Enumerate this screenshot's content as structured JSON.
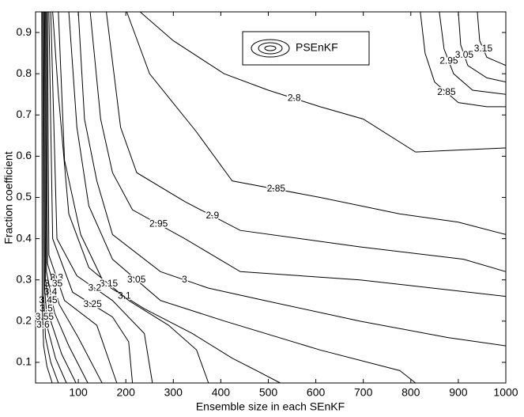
{
  "chart_data": {
    "type": "contour",
    "xlabel": "Ensemble size in each SEnKF",
    "ylabel": "Fraction coefficient",
    "legend": "PSEnKF",
    "legend_position": "upper center",
    "color": "#000000",
    "xlim": [
      10,
      1000
    ],
    "ylim": [
      0.05,
      0.95
    ],
    "xticks": [
      100,
      200,
      300,
      400,
      500,
      600,
      700,
      800,
      900,
      1000
    ],
    "yticks": [
      0.1,
      0.2,
      0.3,
      0.4,
      0.5,
      0.6,
      0.7,
      0.8,
      0.9
    ],
    "contours": [
      {
        "level": 2.8,
        "x": [
          230,
          300,
          407,
          500,
          609,
          700,
          810,
          900,
          1000
        ],
        "y": [
          0.95,
          0.88,
          0.8,
          0.76,
          0.72,
          0.69,
          0.61,
          0.615,
          0.62
        ]
      },
      {
        "level": 2.85,
        "x": [
          202,
          250,
          348,
          424,
          609,
          777,
          900,
          1000
        ],
        "y": [
          0.95,
          0.8,
          0.66,
          0.54,
          0.5,
          0.46,
          0.44,
          0.41
        ]
      },
      {
        "level": 2.9,
        "x": [
          159,
          189,
          223,
          324,
          441,
          693,
          911,
          1000
        ],
        "y": [
          0.95,
          0.67,
          0.56,
          0.49,
          0.42,
          0.38,
          0.35,
          0.32
        ]
      },
      {
        "level": 2.95,
        "x": [
          125,
          147,
          172,
          214,
          324,
          441,
          693,
          1000
        ],
        "y": [
          0.95,
          0.69,
          0.56,
          0.47,
          0.4,
          0.32,
          0.3,
          0.26
        ]
      },
      {
        "level": 3,
        "x": [
          100,
          113,
          139,
          172,
          273,
          374,
          492,
          693,
          878,
          1000
        ],
        "y": [
          0.95,
          0.69,
          0.54,
          0.41,
          0.32,
          0.28,
          0.25,
          0.2,
          0.16,
          0.14
        ]
      },
      {
        "level": 3.05,
        "x": [
          80,
          97,
          122,
          172,
          273,
          408,
          609,
          777,
          810
        ],
        "y": [
          0.95,
          0.67,
          0.48,
          0.35,
          0.25,
          0.2,
          0.13,
          0.08,
          0.05
        ]
      },
      {
        "level": 3.1,
        "x": [
          58,
          71,
          105,
          155,
          239,
          340,
          424,
          475,
          525
        ],
        "y": [
          0.95,
          0.59,
          0.41,
          0.29,
          0.23,
          0.17,
          0.11,
          0.08,
          0.05
        ]
      },
      {
        "level": 3.15,
        "x": [
          46,
          58,
          80,
          122,
          206,
          290,
          349,
          374
        ],
        "y": [
          0.95,
          0.75,
          0.46,
          0.33,
          0.25,
          0.19,
          0.13,
          0.05
        ]
      },
      {
        "level": 3.2,
        "x": [
          42,
          55,
          97,
          172,
          239,
          256
        ],
        "y": [
          0.95,
          0.4,
          0.31,
          0.25,
          0.17,
          0.05
        ]
      },
      {
        "level": 3.25,
        "x": [
          38,
          46,
          88,
          172,
          206,
          214
        ],
        "y": [
          0.95,
          0.4,
          0.27,
          0.21,
          0.15,
          0.05
        ]
      },
      {
        "level": 3.3,
        "x": [
          35,
          38,
          71,
          139,
          181
        ],
        "y": [
          0.95,
          0.36,
          0.25,
          0.19,
          0.05
        ]
      },
      {
        "level": 3.35,
        "x": [
          33,
          35,
          60,
          100,
          150
        ],
        "y": [
          0.95,
          0.34,
          0.24,
          0.16,
          0.05
        ]
      },
      {
        "level": 3.4,
        "x": [
          31,
          33,
          50,
          80,
          120
        ],
        "y": [
          0.95,
          0.32,
          0.22,
          0.14,
          0.05
        ]
      },
      {
        "level": 3.45,
        "x": [
          29,
          31,
          42,
          65,
          95
        ],
        "y": [
          0.95,
          0.3,
          0.2,
          0.12,
          0.05
        ]
      },
      {
        "level": 3.5,
        "x": [
          27,
          29,
          36,
          52,
          75
        ],
        "y": [
          0.95,
          0.28,
          0.18,
          0.11,
          0.05
        ]
      },
      {
        "level": 3.55,
        "x": [
          25,
          27,
          31,
          42,
          58
        ],
        "y": [
          0.95,
          0.26,
          0.16,
          0.1,
          0.05
        ]
      },
      {
        "level": 3.6,
        "x": [
          23,
          24,
          27,
          34,
          45
        ],
        "y": [
          0.95,
          0.24,
          0.14,
          0.09,
          0.05
        ]
      },
      {
        "level": 2.85,
        "x": [
          820,
          830,
          850,
          900,
          960,
          1000
        ],
        "y": [
          0.95,
          0.85,
          0.78,
          0.73,
          0.72,
          0.72
        ]
      },
      {
        "level": 2.95,
        "x": [
          860,
          870,
          890,
          930,
          1000
        ],
        "y": [
          0.95,
          0.86,
          0.8,
          0.76,
          0.75
        ]
      },
      {
        "level": 3.05,
        "x": [
          900,
          905,
          920,
          960,
          1000
        ],
        "y": [
          0.95,
          0.87,
          0.82,
          0.79,
          0.78
        ]
      },
      {
        "level": 3.15,
        "x": [
          940,
          945,
          960,
          1000
        ],
        "y": [
          0.95,
          0.88,
          0.84,
          0.82
        ]
      }
    ]
  }
}
